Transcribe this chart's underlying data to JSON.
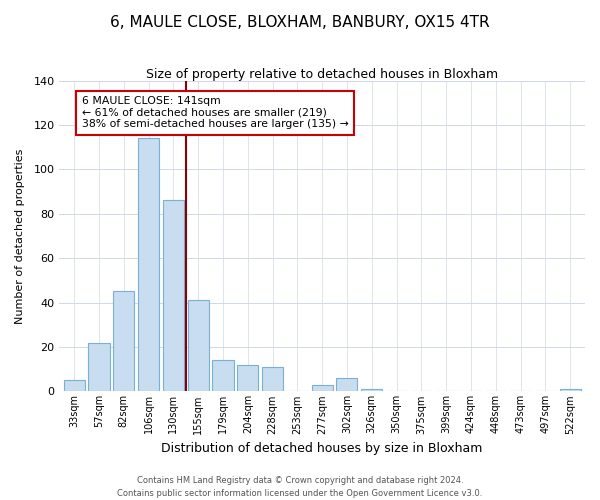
{
  "title": "6, MAULE CLOSE, BLOXHAM, BANBURY, OX15 4TR",
  "subtitle": "Size of property relative to detached houses in Bloxham",
  "xlabel": "Distribution of detached houses by size in Bloxham",
  "ylabel": "Number of detached properties",
  "bar_color": "#c8ddf0",
  "bar_edge_color": "#7ab0d4",
  "categories": [
    "33sqm",
    "57sqm",
    "82sqm",
    "106sqm",
    "130sqm",
    "155sqm",
    "179sqm",
    "204sqm",
    "228sqm",
    "253sqm",
    "277sqm",
    "302sqm",
    "326sqm",
    "350sqm",
    "375sqm",
    "399sqm",
    "424sqm",
    "448sqm",
    "473sqm",
    "497sqm",
    "522sqm"
  ],
  "values": [
    5,
    22,
    45,
    114,
    86,
    41,
    14,
    12,
    11,
    0,
    3,
    6,
    1,
    0,
    0,
    0,
    0,
    0,
    0,
    0,
    1
  ],
  "vline_x": 4.5,
  "vline_color": "#8b0000",
  "annotation_line1": "6 MAULE CLOSE: 141sqm",
  "annotation_line2": "← 61% of detached houses are smaller (219)",
  "annotation_line3": "38% of semi-detached houses are larger (135) →",
  "annotation_box_color": "#ffffff",
  "annotation_box_edge_color": "#cc0000",
  "ylim": [
    0,
    140
  ],
  "yticks": [
    0,
    20,
    40,
    60,
    80,
    100,
    120,
    140
  ],
  "footer_text": "Contains HM Land Registry data © Crown copyright and database right 2024.\nContains public sector information licensed under the Open Government Licence v3.0.",
  "background_color": "#ffffff",
  "grid_color": "#d0d8e8",
  "figsize": [
    6.0,
    5.0
  ],
  "dpi": 100
}
